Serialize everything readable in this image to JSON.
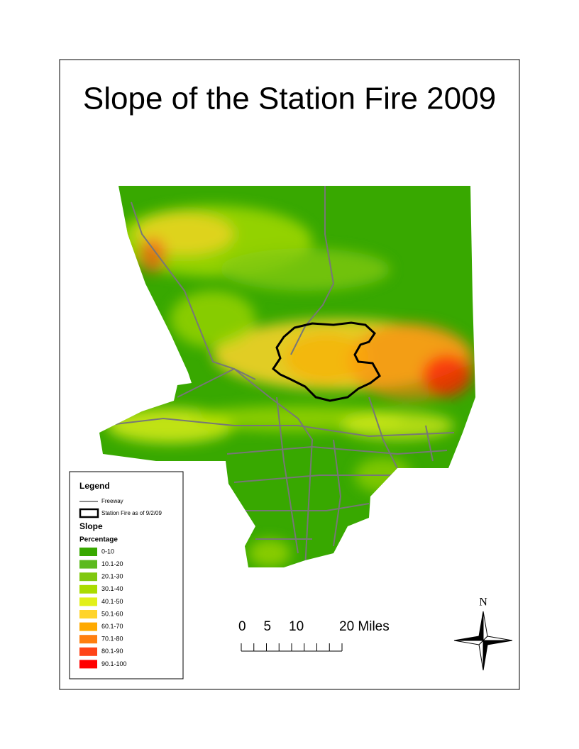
{
  "header": {
    "title": "Slope of the Station Fire 2009"
  },
  "legend": {
    "title": "Legend",
    "freeway": "Freeway",
    "fire": "Station Fire as of 9/2/09",
    "slope_title": "Slope",
    "slope_subtitle": "Percentage",
    "classes": [
      {
        "label": "0-10",
        "color": "#38a800"
      },
      {
        "label": "10.1-20",
        "color": "#5cba1e"
      },
      {
        "label": "20.1-30",
        "color": "#80c80f"
      },
      {
        "label": "30.1-40",
        "color": "#aadc00"
      },
      {
        "label": "40.1-50",
        "color": "#e2f01a"
      },
      {
        "label": "50.1-60",
        "color": "#ffd42a"
      },
      {
        "label": "60.1-70",
        "color": "#ffaa00"
      },
      {
        "label": "70.1-80",
        "color": "#ff7f10"
      },
      {
        "label": "80.1-90",
        "color": "#ff4418"
      },
      {
        "label": "90.1-100",
        "color": "#ff0000"
      }
    ]
  },
  "scale_bar": {
    "ticks": [
      0,
      5,
      10,
      {
        "value": 20,
        "label": "20 Miles"
      }
    ]
  },
  "north_arrow": {
    "label": "N"
  }
}
